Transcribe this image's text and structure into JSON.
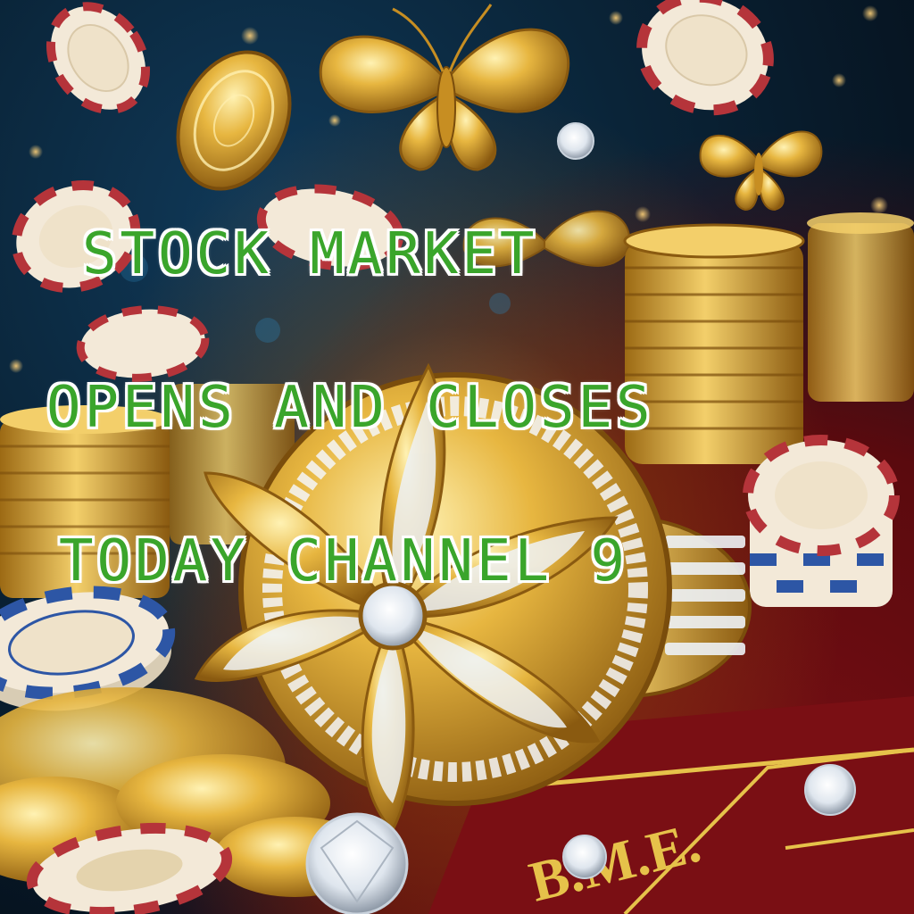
{
  "caption": {
    "line1": "STOCK MARKET",
    "line2": "OPENS AND CLOSES",
    "line3": "TODAY CHANNEL 9"
  },
  "felt_text": "B.M.E.",
  "colors": {
    "caption_fill": "#3aa52b",
    "caption_outline": "#ffffff",
    "gold": "#d9a42a",
    "felt_red": "#7a0f14",
    "chip_white": "#f3e9d8",
    "chip_red": "#b5343a",
    "chip_blue": "#2d56a5"
  }
}
